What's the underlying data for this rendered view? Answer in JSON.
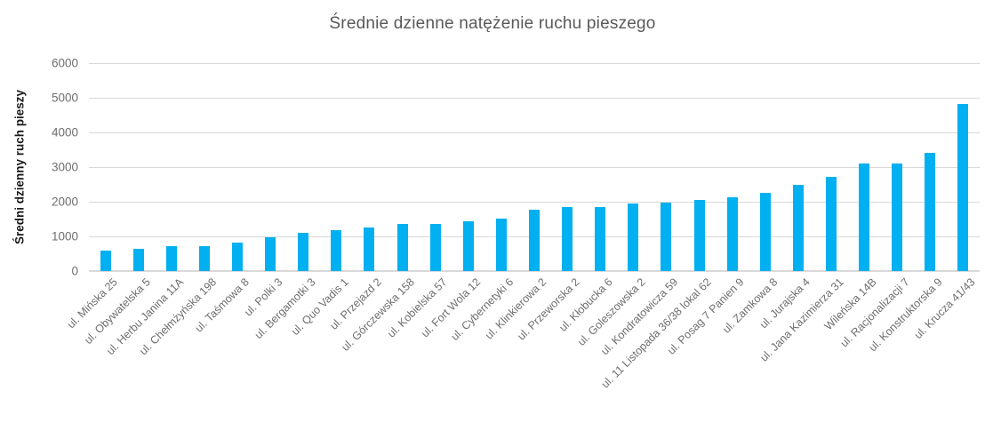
{
  "chart_data": {
    "type": "bar",
    "title": "Średnie dzienne natężenie ruchu pieszego",
    "xlabel": "",
    "ylabel": "Średni dzienny ruch pieszy",
    "categories": [
      "ul. Mińska 25",
      "ul. Obywatelska 5",
      "ul. Herbu Janina 11A",
      "ul. Chełmżyńska 198",
      "ul. Taśmowa 8",
      "ul. Polki 3",
      "ul. Bergamotki 3",
      "ul. Quo Vadis 1",
      "ul. Przejazd 2",
      "ul. Górczewska 158",
      "ul. Kobielska 57",
      "ul. Fort Wola 12",
      "ul. Cybernetyki 6",
      "ul. Klinkierowa 2",
      "ul. Przeworska 2",
      "ul. Kłobucka 6",
      "ul. Goleszowska 2",
      "ul. Kondratowicza 59",
      "ul. 11 Listopada 36/38 lokal 62",
      "ul. Posag 7 Panien 9",
      "ul. Zamkowa 8",
      "ul. Jurajska 4",
      "ul. Jana Kazimierza 31",
      "Wileńska 14B",
      "ul. Racjonalizacji 7",
      "ul. Konstruktorska 9",
      "ul. Krucza 41/43"
    ],
    "values": [
      590,
      640,
      710,
      730,
      810,
      980,
      1090,
      1180,
      1250,
      1360,
      1370,
      1430,
      1520,
      1760,
      1840,
      1840,
      1950,
      1970,
      2040,
      2130,
      2250,
      2490,
      2730,
      3090,
      3100,
      3410,
      4820
    ],
    "ylim": [
      0,
      6000
    ],
    "yticks": [
      0,
      1000,
      2000,
      3000,
      4000,
      5000,
      6000
    ],
    "grid": true,
    "legend": false,
    "bar_color": "#00b0f0",
    "gridline_color": "#d9d9d9",
    "axis_text_color": "#6e6e6e",
    "title_color": "#595959"
  }
}
